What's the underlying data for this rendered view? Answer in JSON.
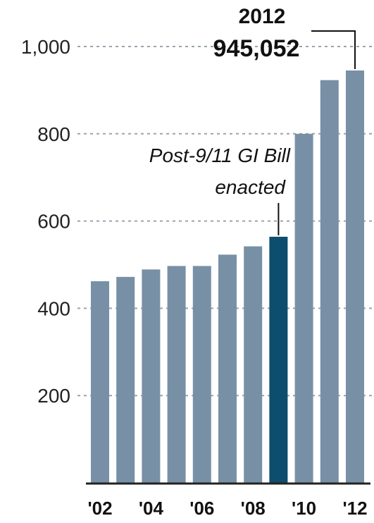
{
  "colors": {
    "bar": "#7890a6",
    "highlight": "#0d4d6d",
    "grid": "#9aa4ad",
    "axis": "#222222",
    "text": "#111111"
  },
  "chart_data": {
    "type": "bar",
    "categories": [
      "2002",
      "2003",
      "2004",
      "2005",
      "2006",
      "2007",
      "2008",
      "2009",
      "2010",
      "2011",
      "2012"
    ],
    "values": [
      462,
      472,
      489,
      497,
      497,
      523,
      542,
      564,
      800,
      923,
      945.052
    ],
    "highlight_index": 7,
    "y_ticks": [
      200,
      400,
      600,
      800,
      1000
    ],
    "y_tick_labels": [
      "200",
      "400",
      "600",
      "800",
      "1,000"
    ],
    "x_tick_labels": [
      "'02",
      "'04",
      "'06",
      "'08",
      "'10",
      "'12"
    ],
    "x_tick_indices": [
      0,
      2,
      4,
      6,
      8,
      10
    ],
    "ylim": [
      0,
      1000
    ],
    "grid": true,
    "annotations": {
      "peak_year": "2012",
      "peak_value": "945,052",
      "event_line1": "Post-9/11 GI Bill",
      "event_line2": "enacted"
    }
  }
}
